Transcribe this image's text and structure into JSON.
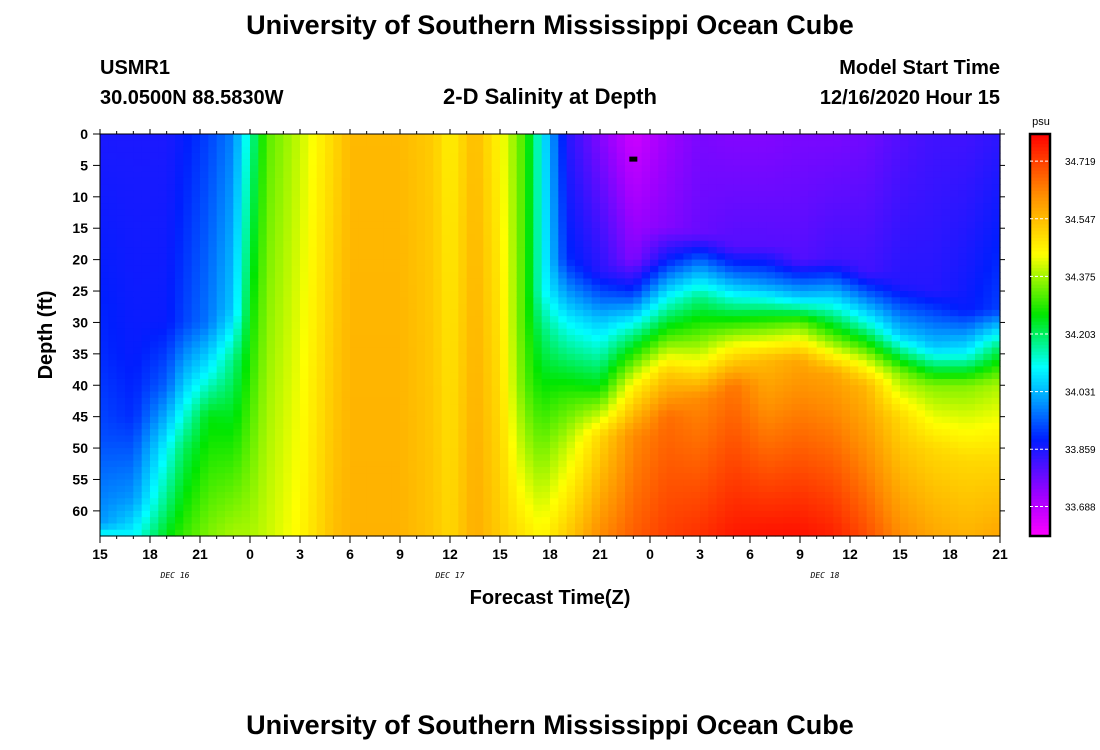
{
  "page": {
    "top_title": "University of Southern Mississippi Ocean Cube",
    "bottom_title": "University of Southern Mississippi Ocean Cube",
    "station": "USMR1",
    "coords": "30.0500N 88.5830W",
    "model_start_label": "Model Start Time",
    "model_start_value": "12/16/2020 Hour 15"
  },
  "chart_data": {
    "type": "heatmap",
    "title": "2-D Salinity at Depth",
    "xlabel": "Forecast Time(Z)",
    "ylabel": "Depth (ft)",
    "x_hours": [
      0,
      3,
      6,
      9,
      12,
      15,
      18,
      21,
      24,
      27,
      30,
      33,
      36,
      39,
      42,
      45,
      48,
      51,
      54
    ],
    "x_tick_labels": [
      "15",
      "18",
      "21",
      "0",
      "3",
      "6",
      "9",
      "12",
      "15",
      "18",
      "21",
      "0",
      "3",
      "6",
      "9",
      "12",
      "15",
      "18",
      "21"
    ],
    "date_labels": [
      {
        "text": "DEC 16",
        "hour": 4.5
      },
      {
        "text": "DEC 17",
        "hour": 21
      },
      {
        "text": "DEC 18",
        "hour": 43.5
      }
    ],
    "ylim": [
      0,
      64
    ],
    "y_ticks": [
      0,
      5,
      10,
      15,
      20,
      25,
      30,
      35,
      40,
      45,
      50,
      55,
      60
    ],
    "colorbar": {
      "unit": "psu",
      "min": 33.6,
      "max": 34.8,
      "labels": [
        "34.719",
        "34.547",
        "34.375",
        "34.203",
        "34.031",
        "33.859",
        "33.688"
      ],
      "label_values": [
        34.719,
        34.547,
        34.375,
        34.203,
        34.031,
        33.859,
        33.688
      ]
    },
    "marker": {
      "hour": 32,
      "depth": 4
    },
    "profiles": [
      {
        "hour": 0,
        "depths": [
          0,
          35,
          48,
          62,
          64
        ],
        "values": [
          33.86,
          33.9,
          33.93,
          34.0,
          34.12
        ]
      },
      {
        "hour": 2,
        "depths": [
          0,
          35,
          45,
          58,
          64
        ],
        "values": [
          33.86,
          33.88,
          33.9,
          34.0,
          34.1
        ]
      },
      {
        "hour": 4,
        "depths": [
          0,
          30,
          40,
          50,
          60,
          64
        ],
        "values": [
          33.86,
          33.88,
          33.95,
          34.1,
          34.2,
          34.25
        ]
      },
      {
        "hour": 5,
        "depths": [
          0,
          30,
          40,
          50,
          64
        ],
        "values": [
          33.88,
          33.92,
          34.05,
          34.2,
          34.3
        ]
      },
      {
        "hour": 6.5,
        "depths": [
          0,
          30,
          38,
          45,
          64
        ],
        "values": [
          33.92,
          33.97,
          34.1,
          34.25,
          34.35
        ]
      },
      {
        "hour": 8,
        "depths": [
          0,
          28,
          36,
          64
        ],
        "values": [
          33.98,
          34.05,
          34.18,
          34.38
        ]
      },
      {
        "hour": 9,
        "depths": [
          0,
          64
        ],
        "values": [
          34.15,
          34.38
        ]
      },
      {
        "hour": 10,
        "depths": [
          0,
          64
        ],
        "values": [
          34.32,
          34.4
        ]
      },
      {
        "hour": 12,
        "depths": [
          0,
          64
        ],
        "values": [
          34.4,
          34.45
        ]
      },
      {
        "hour": 14,
        "depths": [
          0,
          64
        ],
        "values": [
          34.5,
          34.54
        ]
      },
      {
        "hour": 15,
        "depths": [
          0,
          64
        ],
        "values": [
          34.55,
          34.56
        ]
      },
      {
        "hour": 18,
        "depths": [
          0,
          64
        ],
        "values": [
          34.55,
          34.56
        ]
      },
      {
        "hour": 20,
        "depths": [
          0,
          64
        ],
        "values": [
          34.52,
          34.53
        ]
      },
      {
        "hour": 21,
        "depths": [
          0,
          64
        ],
        "values": [
          34.46,
          34.5
        ]
      },
      {
        "hour": 22.5,
        "depths": [
          0,
          64
        ],
        "values": [
          34.55,
          34.57
        ]
      },
      {
        "hour": 24,
        "depths": [
          0,
          64
        ],
        "values": [
          34.45,
          34.52
        ]
      },
      {
        "hour": 25.5,
        "depths": [
          0,
          30,
          40,
          50,
          64
        ],
        "values": [
          34.3,
          34.3,
          34.32,
          34.38,
          34.48
        ]
      },
      {
        "hour": 26.5,
        "depths": [
          0,
          25,
          32,
          45,
          64
        ],
        "values": [
          34.1,
          34.12,
          34.2,
          34.3,
          34.45
        ]
      },
      {
        "hour": 28,
        "depths": [
          0,
          20,
          30,
          42,
          50,
          64
        ],
        "values": [
          33.85,
          33.9,
          34.1,
          34.3,
          34.4,
          34.52
        ]
      },
      {
        "hour": 30,
        "depths": [
          0,
          22,
          30,
          40,
          48,
          64
        ],
        "values": [
          33.75,
          33.85,
          34.05,
          34.25,
          34.5,
          34.62
        ]
      },
      {
        "hour": 32,
        "depths": [
          0,
          20,
          25,
          32,
          40,
          48,
          64
        ],
        "values": [
          33.66,
          33.75,
          33.9,
          34.18,
          34.45,
          34.62,
          34.68
        ]
      },
      {
        "hour": 34,
        "depths": [
          0,
          15,
          20,
          26,
          32,
          38,
          45,
          64
        ],
        "values": [
          33.72,
          33.75,
          33.88,
          34.1,
          34.3,
          34.52,
          34.66,
          34.72
        ]
      },
      {
        "hour": 36,
        "depths": [
          0,
          16,
          20,
          26,
          35,
          42,
          64
        ],
        "values": [
          33.76,
          33.78,
          33.95,
          34.18,
          34.4,
          34.62,
          34.74
        ]
      },
      {
        "hour": 38,
        "depths": [
          0,
          18,
          22,
          28,
          34,
          40,
          64
        ],
        "values": [
          33.75,
          33.8,
          33.95,
          34.2,
          34.45,
          34.65,
          34.77
        ]
      },
      {
        "hour": 40,
        "depths": [
          0,
          18,
          24,
          30,
          36,
          64
        ],
        "values": [
          33.75,
          33.8,
          34.0,
          34.3,
          34.55,
          34.78
        ]
      },
      {
        "hour": 42,
        "depths": [
          0,
          20,
          26,
          30,
          36,
          64
        ],
        "values": [
          33.76,
          33.8,
          34.05,
          34.32,
          34.58,
          34.78
        ]
      },
      {
        "hour": 44,
        "depths": [
          0,
          20,
          27,
          33,
          38,
          64
        ],
        "values": [
          33.76,
          33.82,
          34.1,
          34.35,
          34.58,
          34.76
        ]
      },
      {
        "hour": 46,
        "depths": [
          0,
          22,
          30,
          36,
          40,
          64
        ],
        "values": [
          33.77,
          33.82,
          34.12,
          34.4,
          34.55,
          34.7
        ]
      },
      {
        "hour": 48,
        "depths": [
          0,
          24,
          32,
          38,
          45,
          64
        ],
        "values": [
          33.8,
          33.85,
          34.05,
          34.35,
          34.5,
          34.62
        ]
      },
      {
        "hour": 50,
        "depths": [
          0,
          25,
          34,
          40,
          50,
          64
        ],
        "values": [
          33.82,
          33.85,
          34.05,
          34.35,
          34.5,
          34.58
        ]
      },
      {
        "hour": 52,
        "depths": [
          0,
          28,
          35,
          40,
          52,
          64
        ],
        "values": [
          33.82,
          33.88,
          34.1,
          34.35,
          34.5,
          34.56
        ]
      },
      {
        "hour": 54,
        "depths": [
          0,
          28,
          34,
          40,
          52,
          64
        ],
        "values": [
          33.84,
          33.92,
          34.2,
          34.38,
          34.5,
          34.58
        ]
      }
    ]
  }
}
